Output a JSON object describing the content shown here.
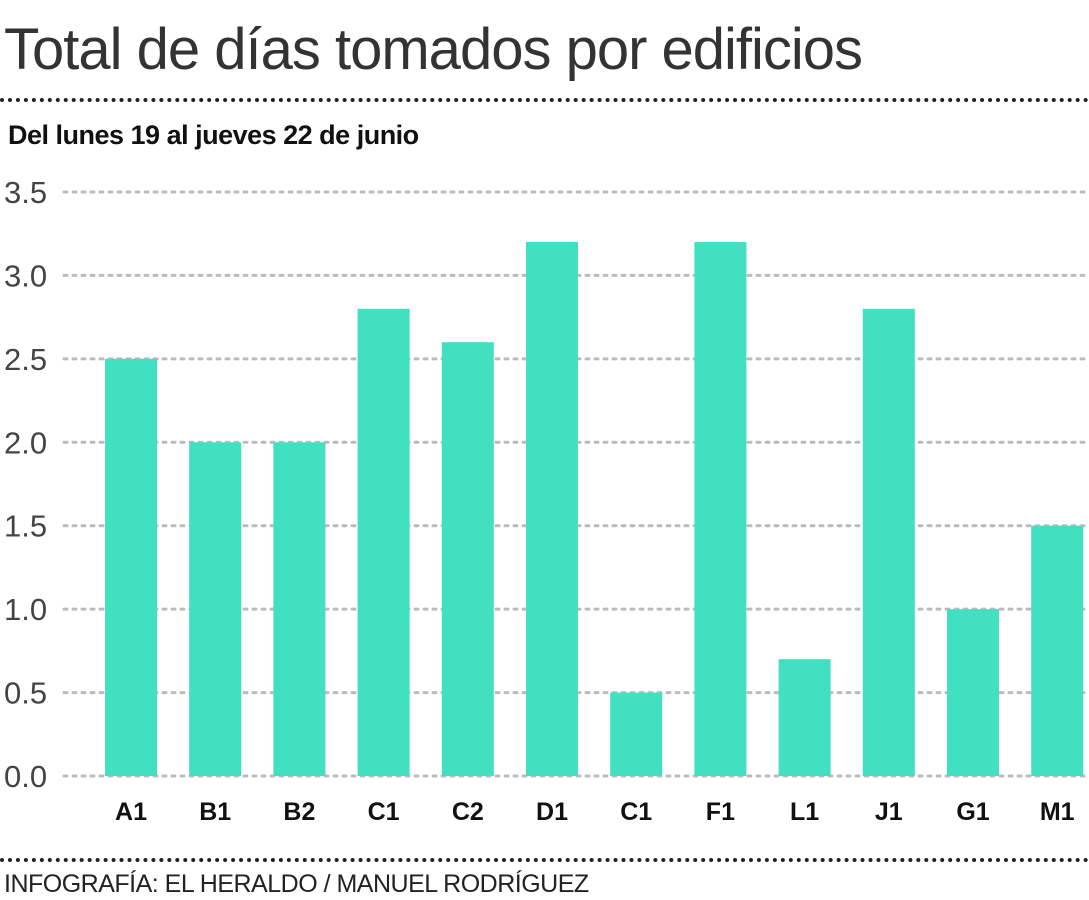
{
  "chart_data": {
    "type": "bar",
    "title": "Total de días tomados por edificios",
    "subtitle": "Del lunes 19 al jueves 22 de junio",
    "categories": [
      "A1",
      "B1",
      "B2",
      "C1",
      "C2",
      "D1",
      "C1",
      "F1",
      "L1",
      "J1",
      "G1",
      "M1"
    ],
    "values": [
      2.5,
      2.0,
      2.0,
      2.8,
      2.6,
      3.2,
      0.5,
      3.2,
      0.7,
      2.8,
      1.0,
      1.5
    ],
    "yticks": [
      "0.0",
      "0.5",
      "1.0",
      "1.5",
      "2.0",
      "2.5",
      "3.0",
      "3.5"
    ],
    "ylim": [
      0,
      3.5
    ],
    "grid": true,
    "bar_color": "#40E0C0",
    "xlabel": "",
    "ylabel": ""
  },
  "credit": "INFOGRAFÍA: EL HERALDO / MANUEL RODRÍGUEZ"
}
